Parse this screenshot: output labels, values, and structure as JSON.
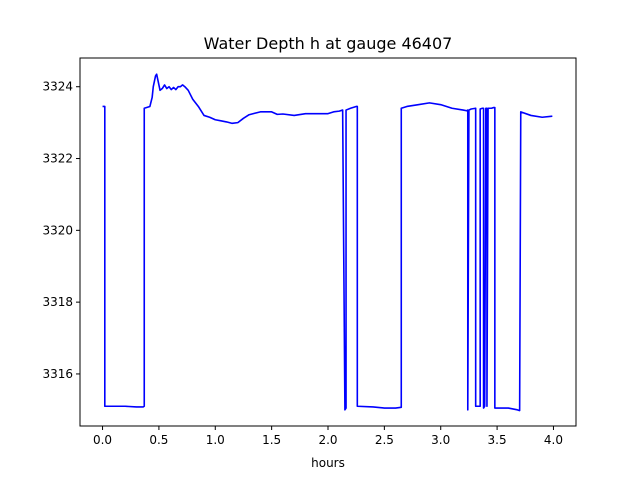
{
  "chart_data": {
    "type": "line",
    "title": "Water Depth h at gauge 46407",
    "xlabel": "hours",
    "ylabel": "",
    "xlim": [
      -0.2,
      4.2
    ],
    "ylim": [
      3314.55,
      3324.8
    ],
    "xticks": [
      0.0,
      0.5,
      1.0,
      1.5,
      2.0,
      2.5,
      3.0,
      3.5,
      4.0
    ],
    "xtick_labels": [
      "0.0",
      "0.5",
      "1.0",
      "1.5",
      "2.0",
      "2.5",
      "3.0",
      "3.5",
      "4.0"
    ],
    "yticks": [
      3316,
      3318,
      3320,
      3322,
      3324
    ],
    "ytick_labels": [
      "3316",
      "3318",
      "3320",
      "3322",
      "3324"
    ],
    "grid": false,
    "colors": {
      "line": "#0000ff",
      "axes": "#000000",
      "background": "#ffffff"
    },
    "series": [
      {
        "x": [
          0.0,
          0.02,
          0.02,
          0.1,
          0.2,
          0.3,
          0.36,
          0.37,
          0.37,
          0.42,
          0.44,
          0.45,
          0.47,
          0.48,
          0.49,
          0.51,
          0.53,
          0.55,
          0.57,
          0.59,
          0.61,
          0.63,
          0.65,
          0.67,
          0.69,
          0.71,
          0.73,
          0.76,
          0.8,
          0.85,
          0.9,
          0.95,
          1.0,
          1.05,
          1.1,
          1.15,
          1.2,
          1.25,
          1.3,
          1.4,
          1.5,
          1.55,
          1.6,
          1.7,
          1.8,
          1.9,
          2.0,
          2.05,
          2.1,
          2.13,
          2.15,
          2.15,
          2.16,
          2.16,
          2.2,
          2.25,
          2.26,
          2.26,
          2.4,
          2.5,
          2.6,
          2.65,
          2.65,
          2.7,
          2.8,
          2.9,
          3.0,
          3.1,
          3.2,
          3.23,
          3.24,
          3.24,
          3.25,
          3.27,
          3.31,
          3.31,
          3.35,
          3.35,
          3.37,
          3.38,
          3.38,
          3.39,
          3.4,
          3.41,
          3.41,
          3.42,
          3.45,
          3.47,
          3.48,
          3.48,
          3.6,
          3.68,
          3.7,
          3.71,
          3.8,
          3.9,
          3.99
        ],
        "y": [
          3323.45,
          3323.45,
          3315.1,
          3315.1,
          3315.1,
          3315.08,
          3315.08,
          3315.1,
          3323.4,
          3323.45,
          3323.7,
          3324.0,
          3324.3,
          3324.35,
          3324.2,
          3323.9,
          3323.95,
          3324.05,
          3323.95,
          3324.0,
          3323.92,
          3323.98,
          3323.92,
          3324.0,
          3324.0,
          3324.05,
          3324.0,
          3323.9,
          3323.65,
          3323.45,
          3323.2,
          3323.15,
          3323.08,
          3323.05,
          3323.02,
          3322.98,
          3323.0,
          3323.12,
          3323.22,
          3323.3,
          3323.3,
          3323.23,
          3323.24,
          3323.2,
          3323.25,
          3323.25,
          3323.25,
          3323.3,
          3323.32,
          3323.35,
          3315.0,
          3315.0,
          3315.05,
          3323.35,
          3323.4,
          3323.45,
          3323.45,
          3315.1,
          3315.08,
          3315.05,
          3315.05,
          3315.07,
          3323.4,
          3323.45,
          3323.5,
          3323.55,
          3323.5,
          3323.4,
          3323.35,
          3323.33,
          3323.35,
          3315.0,
          3323.35,
          3323.38,
          3323.4,
          3315.1,
          3315.1,
          3323.38,
          3323.4,
          3323.4,
          3315.05,
          3315.1,
          3323.4,
          3323.4,
          3315.1,
          3323.4,
          3323.4,
          3323.42,
          3323.42,
          3315.05,
          3315.05,
          3315.0,
          3314.98,
          3323.3,
          3323.2,
          3323.15,
          3323.18
        ]
      }
    ]
  }
}
